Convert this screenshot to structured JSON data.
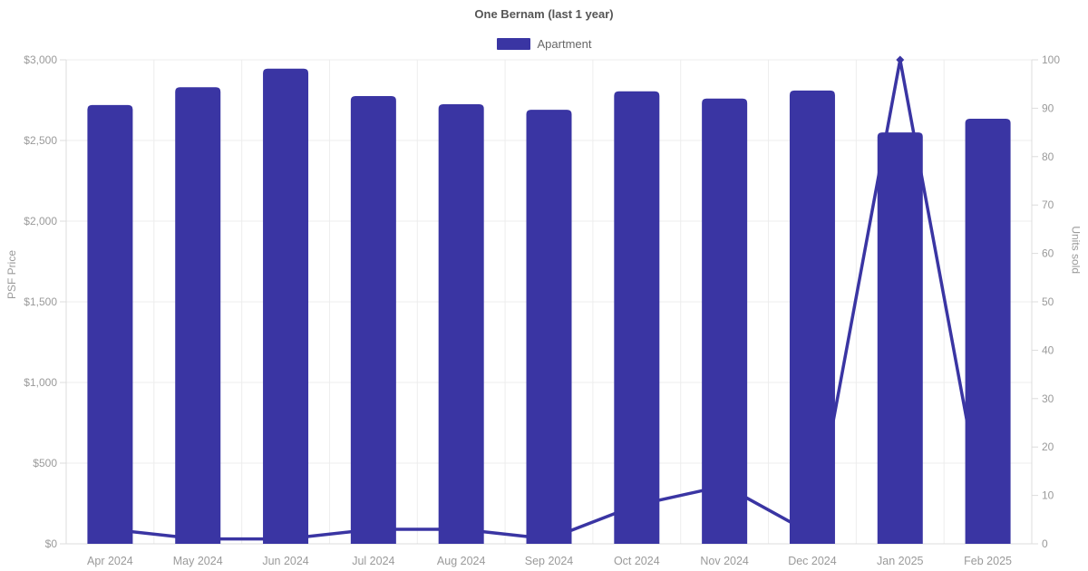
{
  "title": "One Bernam (last 1 year)",
  "legend": {
    "items": [
      {
        "label": "Apartment",
        "color": "#3a35a3"
      }
    ]
  },
  "axes": {
    "left": {
      "title": "PSF Price",
      "tick_labels": [
        "$3,000",
        "$2,500",
        "$2,000",
        "$1,500",
        "$1,000",
        "$500",
        "$0"
      ]
    },
    "right": {
      "title": "Units sold",
      "tick_labels": [
        "100",
        "90",
        "80",
        "70",
        "60",
        "50",
        "40",
        "30",
        "20",
        "10",
        "0"
      ]
    }
  },
  "chart_data": {
    "type": "bar",
    "title": "One Bernam (last 1 year)",
    "categories": [
      "Apr 2024",
      "May 2024",
      "Jun 2024",
      "Jul 2024",
      "Aug 2024",
      "Sep 2024",
      "Oct 2024",
      "Nov 2024",
      "Dec 2024",
      "Jan 2025",
      "Feb 2025"
    ],
    "series": [
      {
        "name": "Apartment",
        "type": "bar",
        "axis": "left",
        "axis_label": "PSF Price",
        "values": [
          2720,
          2830,
          2945,
          2775,
          2725,
          2690,
          2805,
          2760,
          2810,
          2550,
          2635
        ]
      },
      {
        "name": "Units sold",
        "type": "line",
        "axis": "right",
        "axis_label": "Units sold",
        "values": [
          3,
          1,
          1,
          3,
          3,
          1,
          8,
          12,
          2,
          100,
          2
        ]
      }
    ],
    "ylabel_left": "PSF Price",
    "ylabel_right": "Units sold",
    "ylim_left": [
      0,
      3000
    ],
    "ylim_right": [
      0,
      100
    ],
    "grid": true,
    "legend_position": "top"
  },
  "colors": {
    "bar": "#3a35a3",
    "line": "#3a35a3",
    "grid": "#ededed",
    "border": "#dcdcdc",
    "tick_text": "#9a9a9a",
    "title_text": "#555555",
    "legend_text": "#666666",
    "background": "#ffffff"
  }
}
